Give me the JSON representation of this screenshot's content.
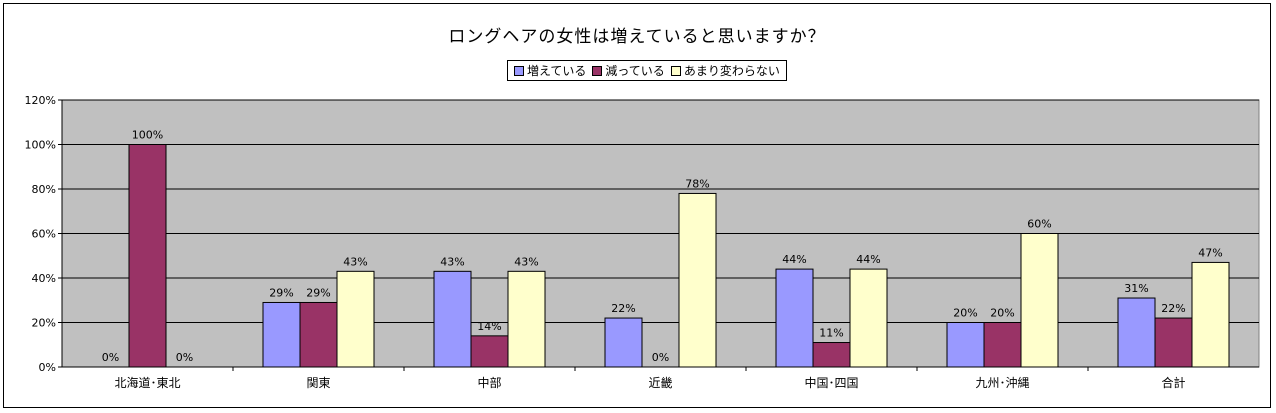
{
  "chart_data": {
    "type": "bar",
    "title": "ロングヘアの女性は増えていると思いますか？",
    "categories": [
      "北海道･東北",
      "関東",
      "中部",
      "近畿",
      "中国･四国",
      "九州･沖縄",
      "合計"
    ],
    "series": [
      {
        "name": "増えている",
        "values": [
          0,
          29,
          43,
          22,
          44,
          20,
          31
        ],
        "labels": [
          "0%",
          "29%",
          "43%",
          "22%",
          "44%",
          "20%",
          "31%"
        ]
      },
      {
        "name": "減っている",
        "values": [
          100,
          29,
          14,
          0,
          11,
          20,
          22
        ],
        "labels": [
          "100%",
          "29%",
          "14%",
          "0%",
          "11%",
          "20%",
          "22%"
        ]
      },
      {
        "name": "あまり変わらない",
        "values": [
          0,
          43,
          43,
          78,
          44,
          60,
          47
        ],
        "labels": [
          "0%",
          "43%",
          "43%",
          "78%",
          "44%",
          "60%",
          "47%"
        ]
      }
    ],
    "yticks": [
      "0%",
      "20%",
      "40%",
      "60%",
      "80%",
      "100%",
      "120%"
    ],
    "ylim": [
      0,
      120
    ],
    "grid": true,
    "legend": "top-center",
    "colors": {
      "series": [
        "#9999ff",
        "#993366",
        "#ffffcc"
      ],
      "plot_background": "#c0c0c0"
    }
  }
}
